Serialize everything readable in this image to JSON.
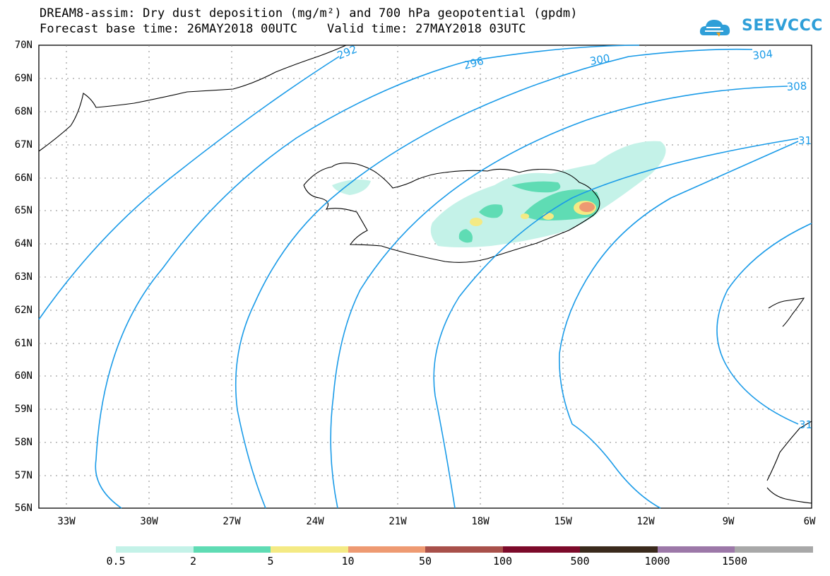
{
  "title_line1": "DREAM8-assim: Dry dust deposition (mg/m²) and 700 hPa geopotential (gpdm)",
  "title_line2": "Forecast base time: 26MAY2018 00UTC    Valid time: 27MAY2018 03UTC",
  "logo_text": "SEEVCCC",
  "logo_icon": "cloud-icon",
  "lat_labels": [
    "70N",
    "69N",
    "68N",
    "67N",
    "66N",
    "65N",
    "64N",
    "63N",
    "62N",
    "61N",
    "60N",
    "59N",
    "58N",
    "57N",
    "56N"
  ],
  "lon_labels": [
    "33W",
    "30W",
    "27W",
    "24W",
    "21W",
    "18W",
    "15W",
    "12W",
    "9W",
    "6W"
  ],
  "contour_labels": {
    "c292": "292",
    "c296": "296",
    "c300": "300",
    "c304": "304",
    "c308": "308",
    "c312a": "31",
    "c312b": "31"
  },
  "contour_color": "#1a9be8",
  "colorbar": {
    "colors": [
      "#c4f2e8",
      "#5fdcb4",
      "#f4ea84",
      "#ee9a72",
      "#a8504a",
      "#7c0a2a",
      "#3a2a1c",
      "#9c78a8",
      "#a8a8a8"
    ],
    "labels": [
      "0.5",
      "2",
      "5",
      "10",
      "50",
      "100",
      "500",
      "1000",
      "1500"
    ]
  }
}
